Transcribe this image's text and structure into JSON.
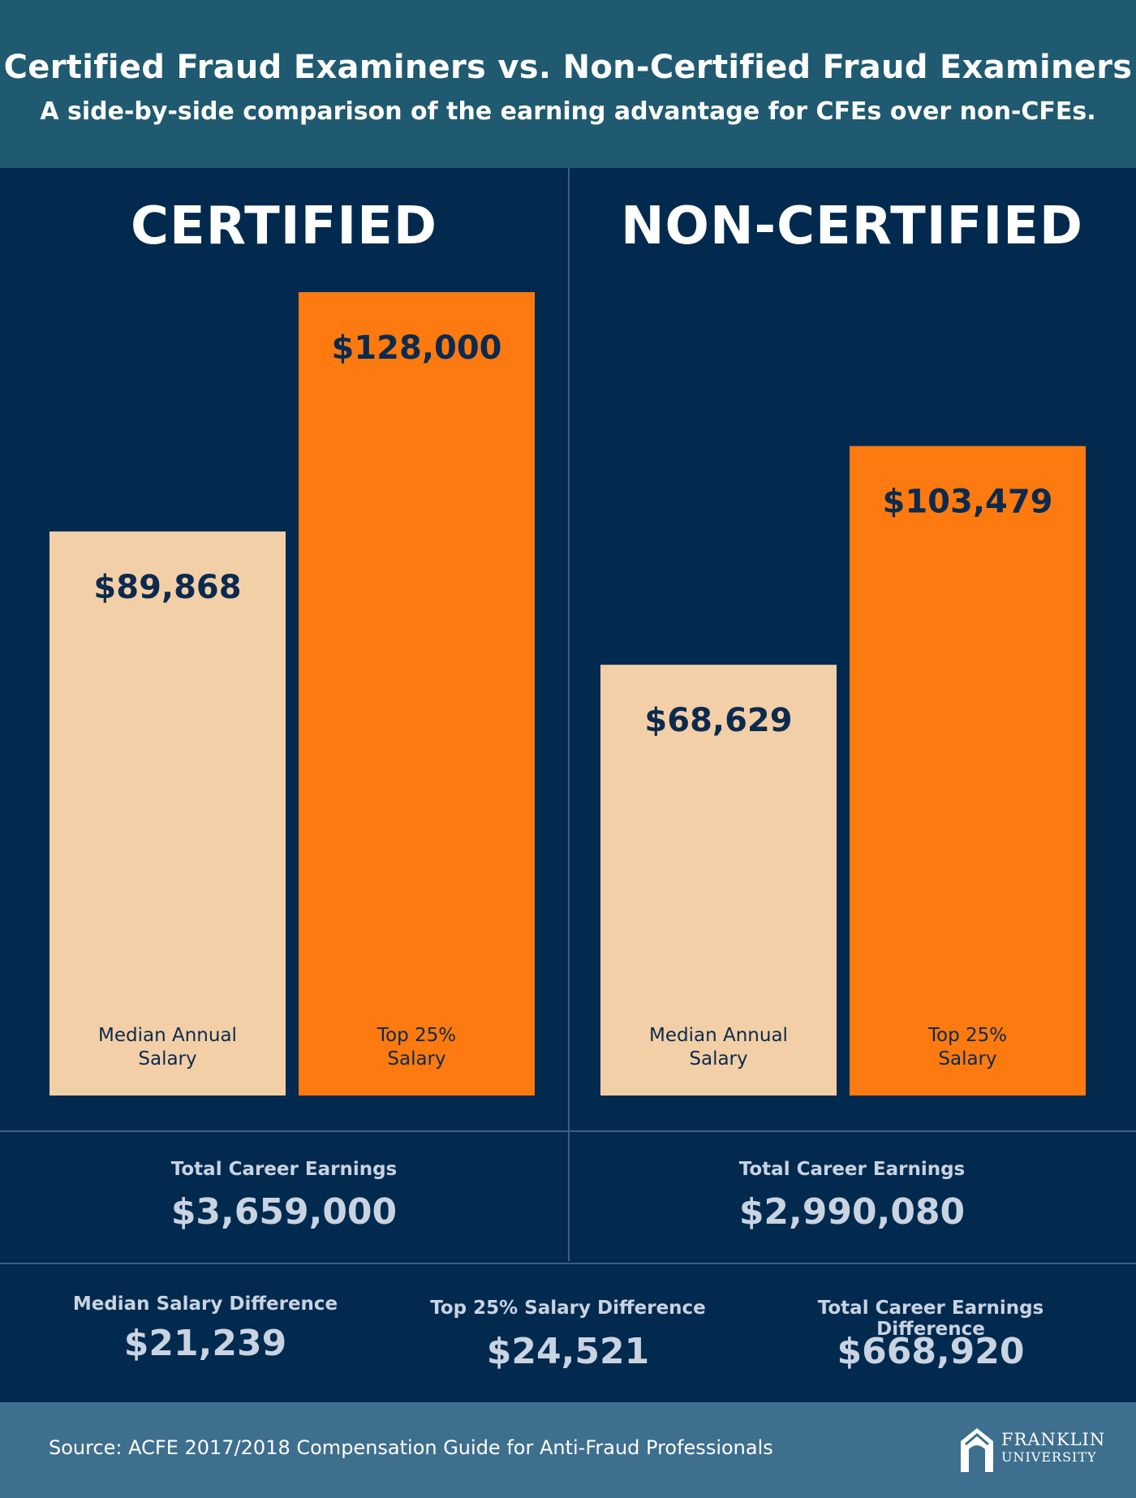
{
  "header": {
    "title": "Certified Fraud Examiners vs. Non-Certified Fraud Examiners",
    "subtitle": "A side-by-side comparison of the earning advantage for CFEs over non-CFEs."
  },
  "sections": {
    "certified": "CERTIFIED",
    "non_certified": "NON-CERTIFIED"
  },
  "chart_data": {
    "type": "bar",
    "title": "",
    "categories": [
      "Median Annual Salary",
      "Top 25% Salary"
    ],
    "groups": [
      {
        "name": "CERTIFIED",
        "values": [
          89868,
          128000
        ],
        "labels": [
          "$89,868",
          "$128,000"
        ]
      },
      {
        "name": "NON-CERTIFIED",
        "values": [
          68629,
          103479
        ],
        "labels": [
          "$68,629",
          "$103,479"
        ]
      }
    ],
    "category_labels": [
      [
        "Median Annual",
        "Salary"
      ],
      [
        "Top 25%",
        "Salary"
      ]
    ],
    "colors": [
      "#f2cfa6",
      "#fc7a0f"
    ],
    "ylim": [
      0,
      128000
    ],
    "grid": false,
    "legend": "none"
  },
  "career": {
    "label": "Total Career Earnings",
    "certified": "$3,659,000",
    "non_certified": "$2,990,080"
  },
  "differences": [
    {
      "label": "Median Salary Difference",
      "value": "$21,239"
    },
    {
      "label": "Top 25% Salary Difference",
      "value": "$24,521"
    },
    {
      "label": "Total Career Earnings Difference",
      "value": "$668,920"
    }
  ],
  "footer": {
    "source": "Source: ACFE 2017/2018 Compensation Guide for Anti-Fraud Professionals",
    "logo_name": "FRANKLIN",
    "logo_sub": "UNIVERSITY"
  },
  "colors": {
    "background": "#022a4f",
    "header": "#1f5a70",
    "footer": "#3e6f8e",
    "value_text": "#0c2a4e"
  }
}
